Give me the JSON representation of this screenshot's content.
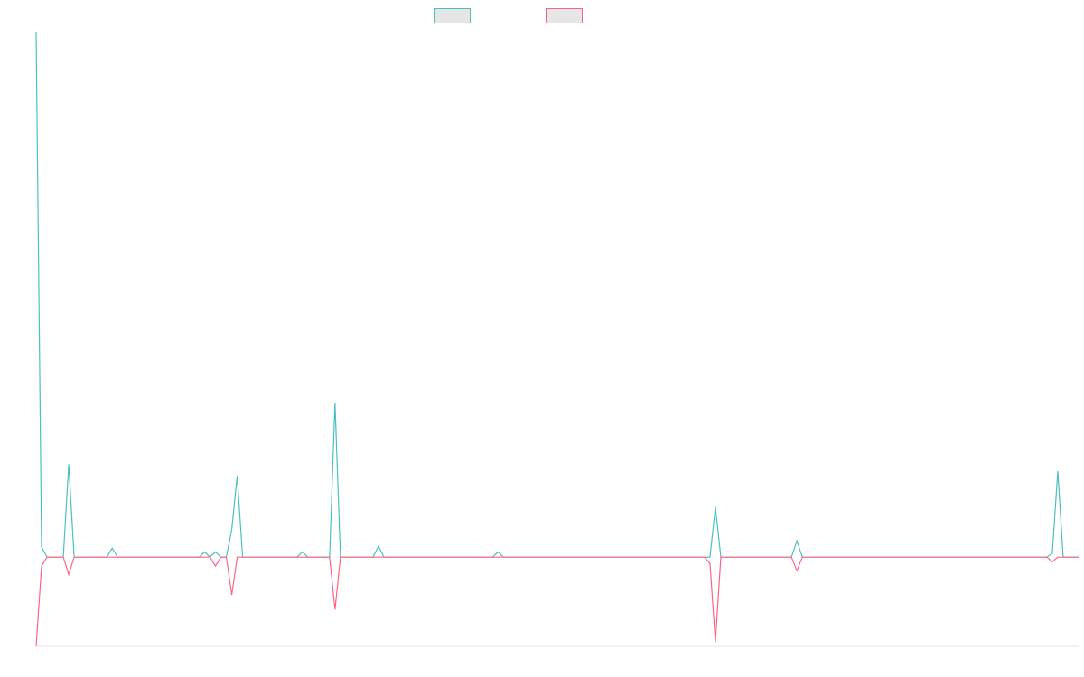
{
  "chart_data": {
    "type": "line",
    "x": [
      0,
      1,
      2,
      5,
      6,
      7,
      13,
      14,
      15,
      30,
      31,
      32,
      33,
      34,
      35,
      36,
      37,
      38,
      48,
      49,
      50,
      54,
      55,
      56,
      62,
      63,
      64,
      84,
      85,
      86,
      123,
      124,
      125,
      126,
      139,
      140,
      141,
      186,
      187,
      188,
      189,
      192
    ],
    "series": [
      {
        "color": "#4bc0c0",
        "values": [
          100,
          1.9,
          0,
          0,
          17.7,
          0,
          0,
          1.7,
          0,
          0,
          1,
          0,
          1,
          0,
          0,
          5.3,
          15.5,
          0,
          0,
          1,
          0,
          0,
          29.4,
          0,
          0,
          2.1,
          0,
          0,
          1,
          0,
          0,
          0,
          9.6,
          0,
          0,
          3.1,
          0,
          0,
          0.7,
          16.4,
          0,
          0
        ]
      },
      {
        "color": "#ff6384",
        "values": [
          -17,
          -1.7,
          0,
          0,
          -3.3,
          0,
          0,
          0,
          0,
          0,
          0,
          0,
          -1.7,
          0,
          0,
          -7.2,
          0,
          0,
          0,
          0,
          0,
          0,
          -10,
          0,
          0,
          0,
          0,
          0,
          0,
          0,
          0,
          -1.2,
          -16.2,
          0,
          0,
          -2.6,
          0,
          0,
          -0.9,
          0,
          0,
          0
        ]
      }
    ],
    "xlim": [
      0,
      192
    ],
    "ylim": [
      -17,
      100
    ]
  }
}
